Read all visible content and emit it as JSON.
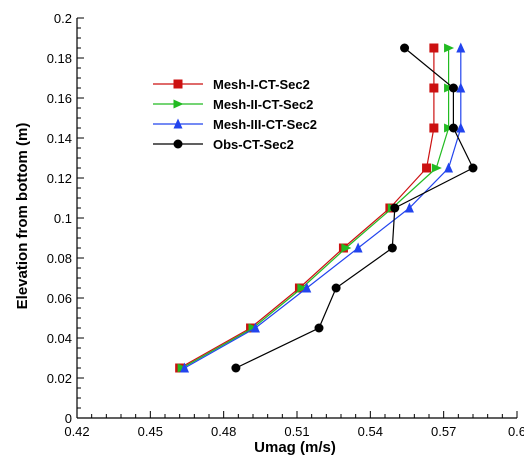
{
  "chart_data": {
    "type": "line",
    "xlabel": "Umag (m/s)",
    "ylabel": "Elevation from bottom (m)",
    "xlim": [
      0.42,
      0.6
    ],
    "ylim": [
      0,
      0.2
    ],
    "xticks": [
      "0.42",
      "0.45",
      "0.48",
      "0.51",
      "0.54",
      "0.57",
      "0.6"
    ],
    "yticks": [
      "0",
      "0.02",
      "0.04",
      "0.06",
      "0.08",
      "0.1",
      "0.12",
      "0.14",
      "0.16",
      "0.18",
      "0.2"
    ],
    "xtick_values": [
      0.42,
      0.45,
      0.48,
      0.51,
      0.54,
      0.57,
      0.6
    ],
    "ytick_values": [
      0,
      0.02,
      0.04,
      0.06,
      0.08,
      0.1,
      0.12,
      0.14,
      0.16,
      0.18,
      0.2
    ],
    "legend_position": "upper-left",
    "grid": false,
    "series": [
      {
        "name": "Mesh-I-CT-Sec2",
        "color": "#cc1111",
        "marker": "square",
        "x": [
          0.462,
          0.491,
          0.511,
          0.529,
          0.548,
          0.563,
          0.566,
          0.566,
          0.566
        ],
        "y": [
          0.025,
          0.045,
          0.065,
          0.085,
          0.105,
          0.125,
          0.145,
          0.165,
          0.185
        ]
      },
      {
        "name": "Mesh-II-CT-Sec2",
        "color": "#22bb22",
        "marker": "triangle-right",
        "x": [
          0.463,
          0.492,
          0.512,
          0.53,
          0.549,
          0.567,
          0.572,
          0.572,
          0.572
        ],
        "y": [
          0.025,
          0.045,
          0.065,
          0.085,
          0.105,
          0.125,
          0.145,
          0.165,
          0.185
        ]
      },
      {
        "name": "Mesh-III-CT-Sec2",
        "color": "#2244ee",
        "marker": "triangle-up",
        "x": [
          0.464,
          0.493,
          0.514,
          0.535,
          0.556,
          0.572,
          0.577,
          0.577,
          0.577
        ],
        "y": [
          0.025,
          0.045,
          0.065,
          0.085,
          0.105,
          0.125,
          0.145,
          0.165,
          0.185
        ]
      },
      {
        "name": "Obs-CT-Sec2",
        "color": "#000000",
        "marker": "circle",
        "x": [
          0.485,
          0.519,
          0.526,
          0.549,
          0.55,
          0.582,
          0.574,
          0.574,
          0.554
        ],
        "y": [
          0.025,
          0.045,
          0.065,
          0.085,
          0.105,
          0.125,
          0.145,
          0.165,
          0.185
        ]
      }
    ]
  }
}
